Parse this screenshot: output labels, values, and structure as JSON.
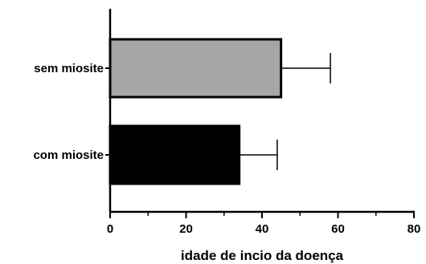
{
  "chart_data": {
    "type": "bar",
    "orientation": "horizontal",
    "title": "",
    "xlabel": "idade de incio da doença",
    "ylabel": "",
    "xlim": [
      0,
      80
    ],
    "x_ticks": [
      "0",
      "20",
      "40",
      "60",
      "80"
    ],
    "grid": false,
    "legend": "none",
    "categories": [
      "sem miosite",
      "com miosite"
    ],
    "values": [
      45,
      34
    ],
    "error": [
      13,
      10
    ],
    "bar_colors": [
      "#a6a6a6",
      "#000000"
    ],
    "error_bar_color": "#000000",
    "axis_color": "#000000"
  }
}
